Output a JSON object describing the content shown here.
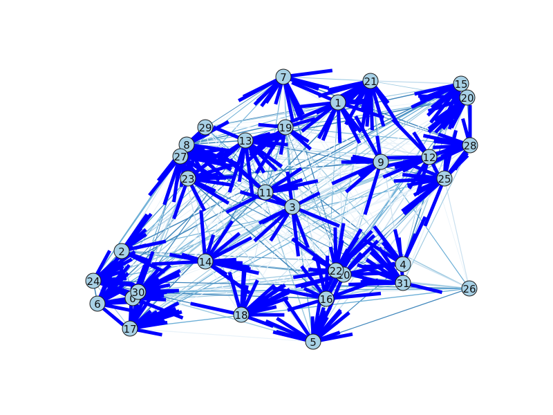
{
  "figure": {
    "node_color": "#a8d1e6",
    "node_edge_color": "#1a1a1a",
    "arrow_color": "#0000ff",
    "edge_colors": [
      "#e8f2f9",
      "#c9e0ef",
      "#9ecae1",
      "#6baed6",
      "#3e85bb"
    ]
  },
  "nodes": [
    {
      "id": "0",
      "label": "0"
    },
    {
      "id": "1",
      "label": "1"
    },
    {
      "id": "2",
      "label": "2"
    },
    {
      "id": "3",
      "label": "3"
    },
    {
      "id": "4",
      "label": "4"
    },
    {
      "id": "5",
      "label": "5"
    },
    {
      "id": "6",
      "label": "6"
    },
    {
      "id": "7",
      "label": "7"
    },
    {
      "id": "8",
      "label": "8"
    },
    {
      "id": "9",
      "label": "9"
    },
    {
      "id": "10",
      "label": "10"
    },
    {
      "id": "11",
      "label": "11"
    },
    {
      "id": "12",
      "label": "12"
    },
    {
      "id": "13",
      "label": "13"
    },
    {
      "id": "14",
      "label": "14"
    },
    {
      "id": "15",
      "label": "15"
    },
    {
      "id": "16",
      "label": "16"
    },
    {
      "id": "17",
      "label": "17"
    },
    {
      "id": "18",
      "label": "18"
    },
    {
      "id": "19",
      "label": "19"
    },
    {
      "id": "20",
      "label": "20"
    },
    {
      "id": "21",
      "label": "21"
    },
    {
      "id": "22",
      "label": "22"
    },
    {
      "id": "23",
      "label": "23"
    },
    {
      "id": "24",
      "label": "24"
    },
    {
      "id": "25",
      "label": "25"
    },
    {
      "id": "26",
      "label": "26"
    },
    {
      "id": "27",
      "label": "27"
    },
    {
      "id": "28",
      "label": "28"
    },
    {
      "id": "29",
      "label": "29"
    },
    {
      "id": "30",
      "label": "30"
    },
    {
      "id": "31",
      "label": "31"
    }
  ]
}
